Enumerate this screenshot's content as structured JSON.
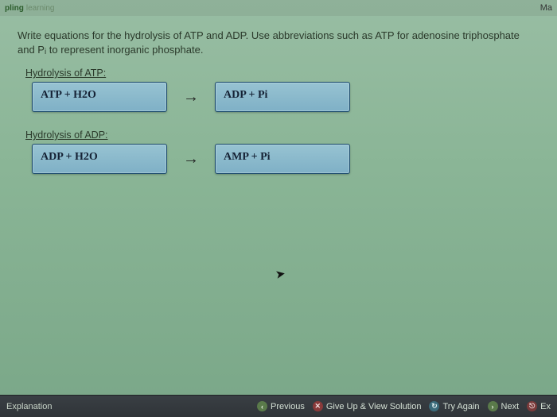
{
  "brand": {
    "main": "pling",
    "sub": "learning"
  },
  "top_right": "Ma",
  "prompt_html": "Write equations for the hydrolysis of ATP and ADP. Use abbreviations such as ATP for adenosine triphosphate and P<sub>i</sub> to represent inorganic phosphate.",
  "sections": [
    {
      "label": "Hydrolysis of ATP:",
      "incorrect": true,
      "left_box": "ATP + H2O",
      "right_box": "ADP + Pi"
    },
    {
      "label": "Hydrolysis of ADP:",
      "incorrect": true,
      "left_box": "ADP + H2O",
      "right_box": "AMP + Pi"
    }
  ],
  "arrow_glyph": "→",
  "bottom": {
    "explanation": "Explanation",
    "previous": "Previous",
    "giveup": "Give Up & View Solution",
    "tryagain": "Try Again",
    "next": "Next",
    "exit": "Ex"
  },
  "colors": {
    "bg_top": "#98bda3",
    "bg_bottom": "#7aa788",
    "box_top": "#97c3d2",
    "box_bottom": "#7fb0c6",
    "box_border": "#1b4a6b",
    "x_color": "#c1272d",
    "bottombar_top": "#3a3f44",
    "bottombar_bottom": "#2f3438"
  }
}
